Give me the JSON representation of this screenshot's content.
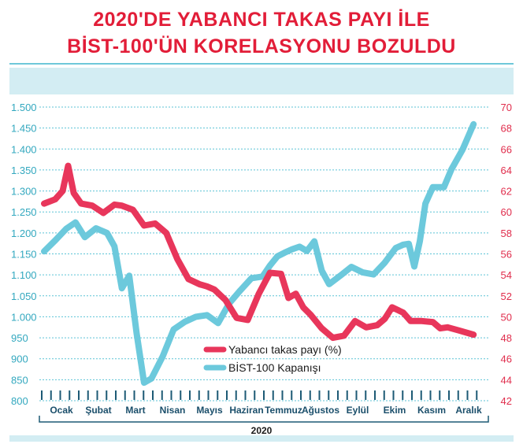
{
  "chart_data": {
    "type": "line",
    "title_line1": "2020'DE YABANCI TAKAS PAYI İLE",
    "title_line2": "BİST-100'ÜN KORELASYONU BOZULDU",
    "xlabel": "2020",
    "months": [
      "Ocak",
      "Şubat",
      "Mart",
      "Nisan",
      "Mayıs",
      "Haziran",
      "Temmuz",
      "Ağustos",
      "Eylül",
      "Ekim",
      "Kasım",
      "Aralık"
    ],
    "y_left": {
      "min": 800,
      "max": 1500,
      "ticks": [
        800,
        850,
        900,
        950,
        1.0,
        1.05,
        1.1,
        1.15,
        1.2,
        1.25,
        1.3,
        1.35,
        1.4,
        1.45,
        1.5
      ],
      "tick_labels": [
        "800",
        "850",
        "900",
        "950",
        "1.000",
        "1.050",
        "1.100",
        "1.150",
        "1.200",
        "1.250",
        "1.300",
        "1.350",
        "1.400",
        "1.450",
        "1.500"
      ]
    },
    "y_right": {
      "min": 42,
      "max": 70,
      "tick_labels": [
        "42",
        "44",
        "46",
        "48",
        "50",
        "52",
        "54",
        "56",
        "58",
        "60",
        "62",
        "64",
        "66",
        "68",
        "70"
      ]
    },
    "grid": true,
    "legend_position": "bottom-center",
    "series": [
      {
        "name": "Yabancı takas payı (%)",
        "axis": "right",
        "color": "#e8365b",
        "x": [
          0,
          0.3,
          0.5,
          0.65,
          0.8,
          1.0,
          1.3,
          1.6,
          1.9,
          2.1,
          2.4,
          2.7,
          3.0,
          3.3,
          3.6,
          3.9,
          4.2,
          4.4,
          4.6,
          4.9,
          5.2,
          5.5,
          5.8,
          6.1,
          6.4,
          6.6,
          6.8,
          7.0,
          7.2,
          7.5,
          7.8,
          8.1,
          8.4,
          8.7,
          9.0,
          9.2,
          9.4,
          9.7,
          9.9,
          10.2,
          10.5,
          10.7,
          10.9,
          11.2,
          11.6
        ],
        "values": [
          60.8,
          61.2,
          62.0,
          64.4,
          61.8,
          60.8,
          60.6,
          59.9,
          60.7,
          60.6,
          60.2,
          58.7,
          58.9,
          58.0,
          55.5,
          53.6,
          53.1,
          52.9,
          52.6,
          51.6,
          49.9,
          49.7,
          52.2,
          54.2,
          54.1,
          51.8,
          52.2,
          50.9,
          50.2,
          48.9,
          48.0,
          48.2,
          49.6,
          49.0,
          49.2,
          49.8,
          50.9,
          50.4,
          49.6,
          49.6,
          49.5,
          48.9,
          49.0,
          48.7,
          48.3
        ]
      },
      {
        "name": "BİST-100 Kapanışı",
        "axis": "left",
        "color": "#6cc9dc",
        "x": [
          0,
          0.3,
          0.6,
          0.85,
          1.1,
          1.4,
          1.7,
          1.9,
          2.1,
          2.3,
          2.5,
          2.7,
          2.9,
          3.2,
          3.5,
          3.8,
          4.1,
          4.4,
          4.7,
          5.0,
          5.3,
          5.6,
          5.9,
          6.1,
          6.3,
          6.5,
          6.7,
          6.9,
          7.1,
          7.3,
          7.5,
          7.7,
          8.0,
          8.3,
          8.6,
          8.9,
          9.2,
          9.5,
          9.7,
          9.85,
          10.0,
          10.15,
          10.3,
          10.5,
          10.8,
          11.0,
          11.3,
          11.6
        ],
        "values": [
          1156,
          1182,
          1210,
          1225,
          1190,
          1211,
          1200,
          1168,
          1068,
          1098,
          960,
          843,
          853,
          905,
          970,
          988,
          1000,
          1004,
          985,
          1032,
          1063,
          1092,
          1096,
          1122,
          1144,
          1153,
          1161,
          1167,
          1157,
          1180,
          1110,
          1078,
          1098,
          1119,
          1106,
          1101,
          1129,
          1164,
          1172,
          1174,
          1120,
          1180,
          1270,
          1309,
          1309,
          1351,
          1398,
          1459
        ]
      }
    ]
  }
}
